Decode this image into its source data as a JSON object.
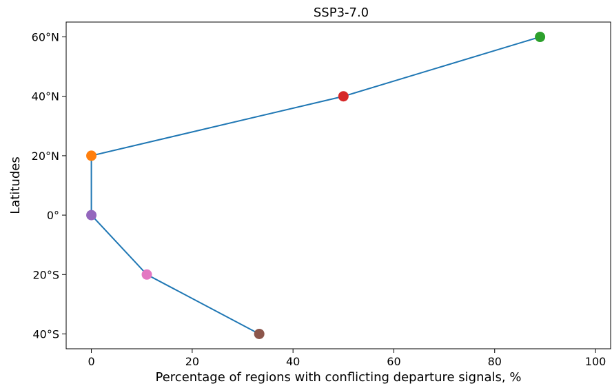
{
  "chart_data": {
    "type": "line",
    "title": "SSP3-7.0",
    "xlabel": "Percentage of regions with conflicting departure signals, %",
    "ylabel": "Latitudes",
    "xlim": [
      -5,
      103
    ],
    "ylim": [
      -45,
      65
    ],
    "x_ticks": [
      0,
      20,
      40,
      60,
      80,
      100
    ],
    "x_tick_labels": [
      "0",
      "20",
      "40",
      "60",
      "80",
      "100"
    ],
    "y_ticks": [
      60,
      40,
      20,
      0,
      -20,
      -40
    ],
    "y_tick_labels": [
      "60°N",
      "40°N",
      "20°N",
      "0°",
      "20°S",
      "40°S"
    ],
    "grid": false,
    "line_color": "#1f77b4",
    "points": [
      {
        "x": 89,
        "y": 60,
        "color": "#2ca02c"
      },
      {
        "x": 50,
        "y": 40,
        "color": "#d62728"
      },
      {
        "x": 0,
        "y": 20,
        "color": "#ff7f0e"
      },
      {
        "x": 0,
        "y": 0,
        "color": "#9467bd"
      },
      {
        "x": 11,
        "y": -20,
        "color": "#e377c2"
      },
      {
        "x": 33.3,
        "y": -40,
        "color": "#8c564b"
      }
    ]
  }
}
